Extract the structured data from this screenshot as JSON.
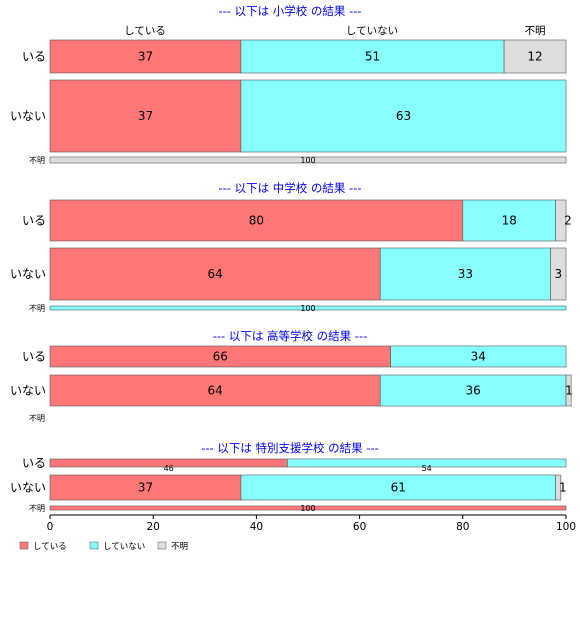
{
  "chart_data": {
    "type": "bar",
    "orientation": "horizontal",
    "stacked": "percent",
    "xlim": [
      0,
      100
    ],
    "xticks": [
      0,
      20,
      40,
      60,
      80,
      100
    ],
    "column_headers": [
      "している",
      "していない",
      "不明"
    ],
    "legend": {
      "position": "bottom-left",
      "items": [
        {
          "label": "している",
          "color": "#ff7777"
        },
        {
          "label": "していない",
          "color": "#88ffff"
        },
        {
          "label": "不明",
          "color": "#dddddd"
        }
      ]
    },
    "panels": [
      {
        "title": "--- 以下は 小学校 の結果 ---",
        "rows": [
          {
            "label": "いる",
            "values": [
              37,
              51,
              12
            ],
            "size": "large"
          },
          {
            "label": "いない",
            "values": [
              37,
              63,
              0
            ],
            "size": "large"
          },
          {
            "label": "不明",
            "values": [
              0,
              0,
              100
            ],
            "size": "small"
          }
        ]
      },
      {
        "title": "--- 以下は 中学校 の結果 ---",
        "rows": [
          {
            "label": "いる",
            "values": [
              80,
              18,
              2
            ],
            "size": "large"
          },
          {
            "label": "いない",
            "values": [
              64,
              33,
              3
            ],
            "size": "large"
          },
          {
            "label": "不明",
            "values": [
              0,
              100,
              0
            ],
            "size": "small"
          }
        ]
      },
      {
        "title": "--- 以下は 高等学校 の結果 ---",
        "rows": [
          {
            "label": "いる",
            "values": [
              66,
              34,
              0
            ],
            "size": "large"
          },
          {
            "label": "いない",
            "values": [
              64,
              36,
              1
            ],
            "size": "large"
          },
          {
            "label": "不明",
            "values": [],
            "size": "small"
          }
        ]
      },
      {
        "title": "--- 以下は 特別支援学校 の結果 ---",
        "rows": [
          {
            "label": "いる",
            "values": [
              46,
              54,
              0
            ],
            "size": "small-mid"
          },
          {
            "label": "いない",
            "values": [
              37,
              61,
              1
            ],
            "size": "large"
          },
          {
            "label": "不明",
            "values": [
              100,
              0,
              0
            ],
            "size": "small"
          }
        ]
      }
    ]
  }
}
